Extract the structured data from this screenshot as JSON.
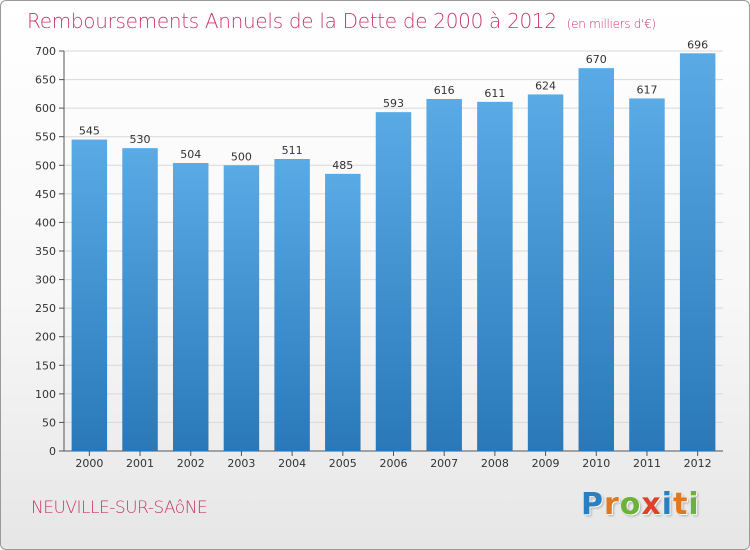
{
  "title": "Remboursements Annuels de la Dette de 2000 à 2012",
  "unit_label": "(en milliers d'€)",
  "city": "NEUVILLE-SUR-SAôNE",
  "logo": {
    "letters": [
      "P",
      "r",
      "o",
      "x",
      "i",
      "t",
      "i"
    ],
    "colors": [
      "#2a7fc0",
      "#e07820",
      "#6ab23a",
      "#e0402a",
      "#2a7fc0",
      "#e07820",
      "#6ab23a"
    ]
  },
  "colors": {
    "bar_top": "#5aaae6",
    "bar_bottom": "#2a78b8",
    "text": "#333333",
    "grid": "#d8d8d8"
  },
  "chart_data": {
    "type": "bar",
    "categories": [
      "2000",
      "2001",
      "2002",
      "2003",
      "2004",
      "2005",
      "2006",
      "2007",
      "2008",
      "2009",
      "2010",
      "2011",
      "2012"
    ],
    "values": [
      545,
      530,
      504,
      500,
      511,
      485,
      593,
      616,
      611,
      624,
      670,
      617,
      696
    ],
    "title": "Remboursements Annuels de la Dette de 2000 à 2012",
    "xlabel": "",
    "ylabel": "",
    "ylim": [
      0,
      700
    ],
    "yticks": [
      0,
      50,
      100,
      150,
      200,
      250,
      300,
      350,
      400,
      450,
      500,
      550,
      600,
      650,
      700
    ],
    "grid": true,
    "data_labels": true
  }
}
